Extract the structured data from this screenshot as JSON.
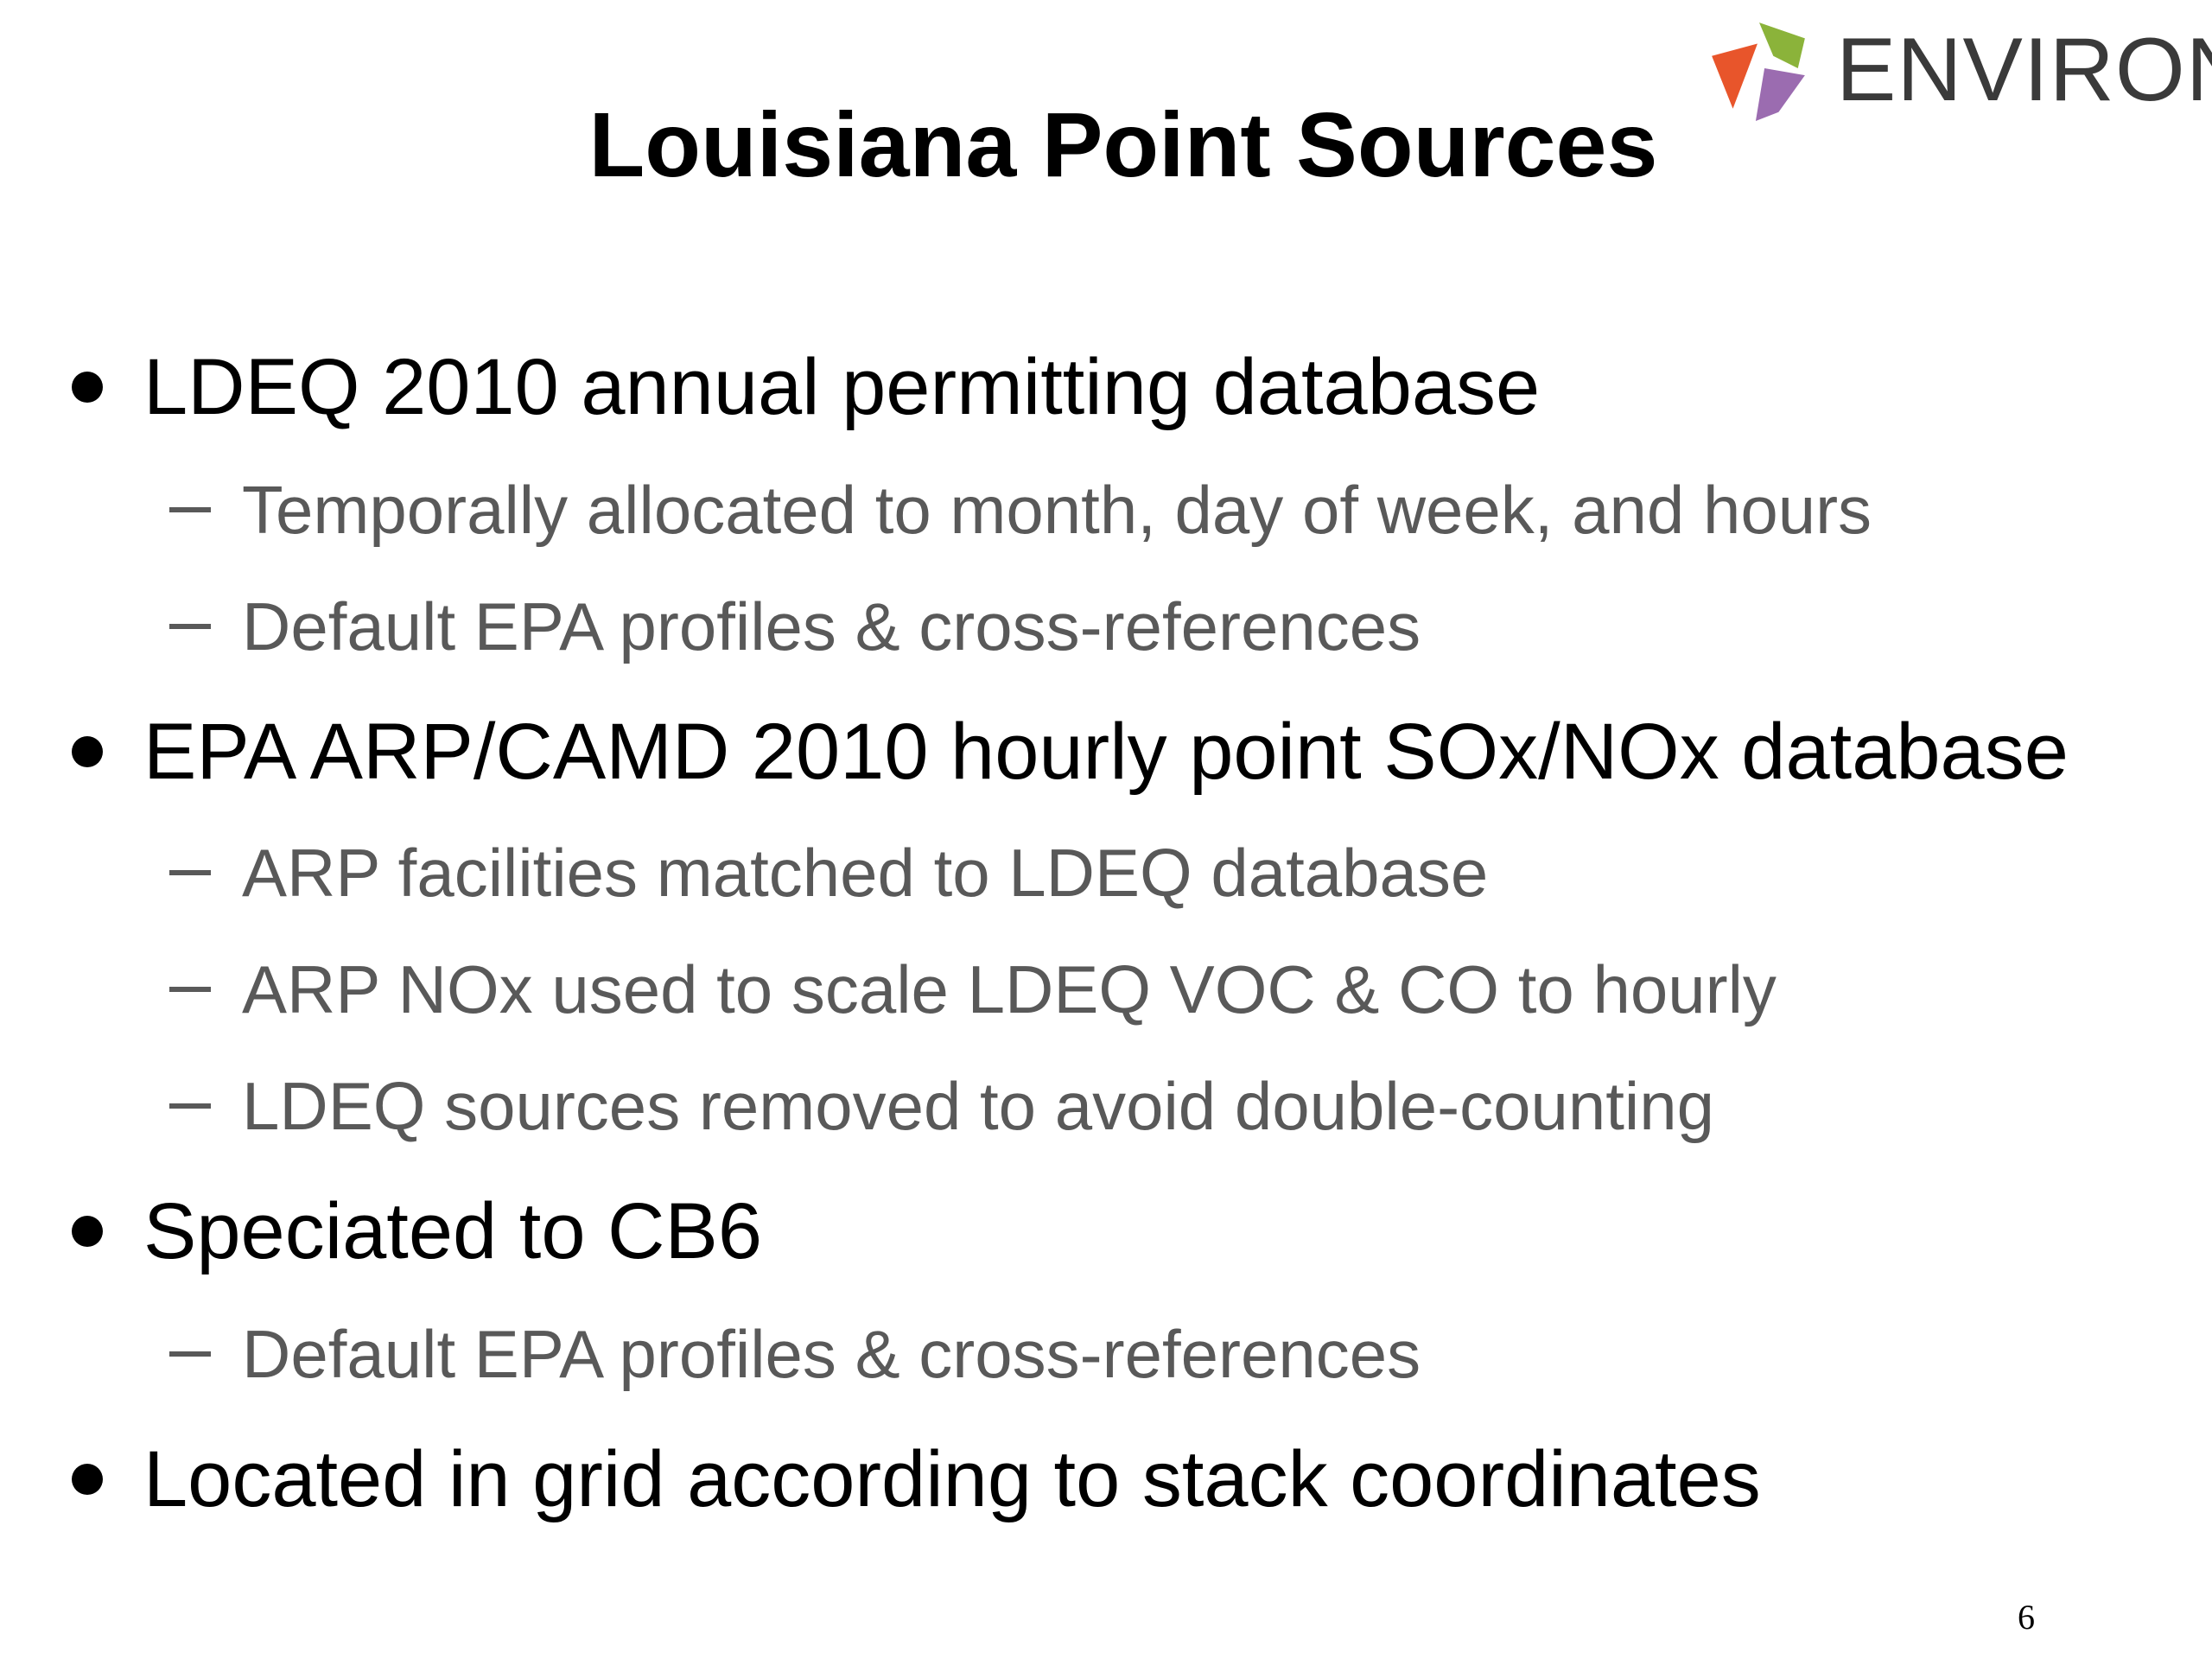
{
  "slide": {
    "title": "Louisiana Point Sources",
    "logo_text": "ENVIRON",
    "page_number": "6",
    "bullets": [
      {
        "text": "LDEQ 2010 annual permitting database",
        "subs": [
          "Temporally allocated to month, day of week, and hours",
          "Default EPA profiles & cross-references"
        ]
      },
      {
        "text": "EPA ARP/CAMD 2010 hourly point SOx/NOx database",
        "subs": [
          "ARP facilities matched to LDEQ database",
          "ARP NOx used to scale LDEQ VOC & CO to hourly",
          "LDEQ sources removed to avoid double-counting"
        ]
      },
      {
        "text": "Speciated to CB6",
        "subs": [
          "Default EPA profiles & cross-references"
        ]
      },
      {
        "text": "Located in grid according to stack coordinates",
        "subs": []
      }
    ]
  },
  "colors": {
    "title": "#000000",
    "bullet_text": "#000000",
    "sub_text": "#595959",
    "logo_text": "#3a3a3a",
    "logo_orange": "#e8552b",
    "logo_green": "#8bb33a",
    "logo_purple": "#9b6cb0"
  }
}
